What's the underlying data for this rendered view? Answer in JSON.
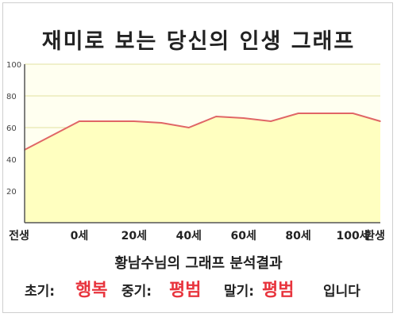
{
  "title": "재미로 보는 당신의 인생 그래프",
  "chart_data": {
    "type": "area",
    "x_labels": [
      "전생",
      "0세",
      "20세",
      "40세",
      "60세",
      "80세",
      "100세",
      "환생"
    ],
    "y_ticks": [
      20,
      40,
      60,
      80,
      100
    ],
    "ylim": [
      0,
      100
    ],
    "x": [
      -20,
      0,
      10,
      20,
      30,
      40,
      50,
      60,
      70,
      80,
      90,
      100,
      110
    ],
    "values": [
      46,
      64,
      64,
      64,
      63,
      60,
      67,
      66,
      64,
      69,
      69,
      69,
      64
    ],
    "colors": {
      "line": "#e06666",
      "fill": "#ffffc0",
      "plot_bg": "#fffff0",
      "grid": "#e0e0a0"
    },
    "grid": true
  },
  "summary": {
    "title": "황남수님의 그래프 분석결과",
    "early_label": "초기:",
    "early_value": "행복",
    "middle_label": "중기:",
    "middle_value": "평범",
    "late_label": "말기:",
    "late_value": "평범",
    "ending": "입니다"
  }
}
